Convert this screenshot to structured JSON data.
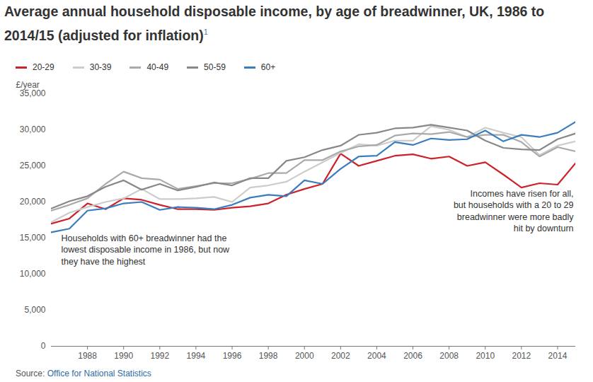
{
  "chart_data": {
    "type": "line",
    "title": "Average annual household disposable income, by age of breadwinner, UK, 1986 to 2014/15 (adjusted for inflation)",
    "title_note": "1",
    "y_label": "£/year",
    "source_prefix": "Source: ",
    "source": "Office for National Statistics",
    "annotations": [
      "Households with 60+ breadwinner had the\nlowest disposable income in 1986, but now\nthey have the highest",
      "Incomes have risen for all,\nbut households with a 20 to 29\nbreadwinner were more badly\nhit by downturn"
    ],
    "x": [
      1986,
      1987,
      1988,
      1989,
      1990,
      1991,
      1992,
      1993,
      1994,
      1995,
      1996,
      1997,
      1998,
      1999,
      2000,
      2001,
      2002,
      2003,
      2004,
      2005,
      2006,
      2007,
      2008,
      2009,
      2010,
      2011,
      2012,
      2013,
      2014,
      2015
    ],
    "series": [
      {
        "name": "20-29",
        "color": "#cc2229",
        "values": [
          17000,
          17700,
          19800,
          19000,
          20500,
          20300,
          19600,
          19000,
          19000,
          18900,
          19200,
          19400,
          19800,
          21000,
          21800,
          22500,
          26700,
          25000,
          25700,
          26400,
          26600,
          26000,
          26300,
          25000,
          25500,
          23800,
          22000,
          22600,
          22400,
          25400
        ]
      },
      {
        "name": "30-39",
        "color": "#cccccc",
        "values": [
          17200,
          18500,
          19300,
          20000,
          20500,
          21800,
          20400,
          20400,
          20500,
          20700,
          20000,
          22000,
          22300,
          22800,
          24200,
          25500,
          26800,
          28000,
          27800,
          28500,
          28500,
          30500,
          30000,
          29000,
          30300,
          29600,
          29000,
          26500,
          27800,
          28400
        ]
      },
      {
        "name": "40-49",
        "color": "#aaaaaa",
        "values": [
          18800,
          19600,
          20500,
          22500,
          24200,
          23300,
          23100,
          21800,
          22200,
          22600,
          22600,
          23200,
          24000,
          24000,
          25800,
          25800,
          27000,
          27700,
          27900,
          29200,
          29500,
          29400,
          29700,
          29000,
          29300,
          29300,
          28300,
          26300,
          27600,
          27000
        ]
      },
      {
        "name": "50-59",
        "color": "#888888",
        "values": [
          19100,
          20100,
          20800,
          22100,
          23000,
          21700,
          22500,
          21600,
          22100,
          22700,
          22300,
          23300,
          23300,
          25700,
          26200,
          27200,
          27800,
          29300,
          29600,
          30200,
          30300,
          30700,
          30300,
          29900,
          28500,
          27500,
          27300,
          27200,
          28700,
          29500
        ]
      },
      {
        "name": "60+",
        "color": "#3a7dbf",
        "values": [
          15800,
          16300,
          18800,
          19100,
          19800,
          20000,
          18900,
          19300,
          19200,
          19000,
          19600,
          20600,
          21000,
          20800,
          23000,
          22500,
          24600,
          26300,
          26400,
          28300,
          27900,
          28800,
          28600,
          28700,
          29900,
          28400,
          29300,
          29000,
          29600,
          31100
        ]
      }
    ],
    "xlim": [
      1986,
      2015
    ],
    "xticks": [
      1988,
      1990,
      1992,
      1994,
      1996,
      1998,
      2000,
      2002,
      2004,
      2006,
      2008,
      2010,
      2012,
      2014
    ],
    "ylim": [
      0,
      35000
    ],
    "yticks": [
      0,
      {
        "value": 5000,
        "label": "5,000"
      },
      {
        "value": 10000,
        "label": "10,000"
      },
      {
        "value": 15000,
        "label": "15,000"
      },
      {
        "value": 20000,
        "label": "20,000"
      },
      {
        "value": 25000,
        "label": "25,000"
      },
      {
        "value": 30000,
        "label": "30,000"
      },
      {
        "value": 35000,
        "label": "35,000"
      }
    ],
    "grid": false,
    "legend": "top-left"
  }
}
